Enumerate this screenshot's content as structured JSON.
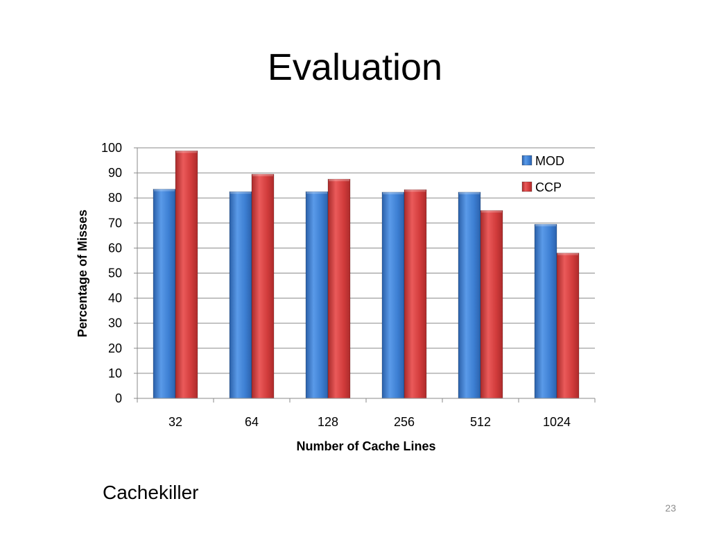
{
  "slide": {
    "title": "Evaluation",
    "caption": "Cachekiller",
    "page_number": "23"
  },
  "chart_data": {
    "type": "bar",
    "title": "",
    "xlabel": "Number of Cache Lines",
    "ylabel": "Percentage of Misses",
    "categories": [
      "32",
      "64",
      "128",
      "256",
      "512",
      "1024"
    ],
    "series": [
      {
        "name": "MOD",
        "values": [
          83.5,
          82.5,
          82.5,
          82.3,
          82.3,
          69.5
        ],
        "color": "#3d7fd3"
      },
      {
        "name": "CCP",
        "values": [
          98.8,
          89.5,
          87.5,
          83.3,
          75.0,
          58.0
        ],
        "color": "#d23c3c"
      }
    ],
    "ylim": [
      0,
      100
    ],
    "yticks": [
      0,
      10,
      20,
      30,
      40,
      50,
      60,
      70,
      80,
      90,
      100
    ],
    "grid": true,
    "legend": "top-right"
  }
}
